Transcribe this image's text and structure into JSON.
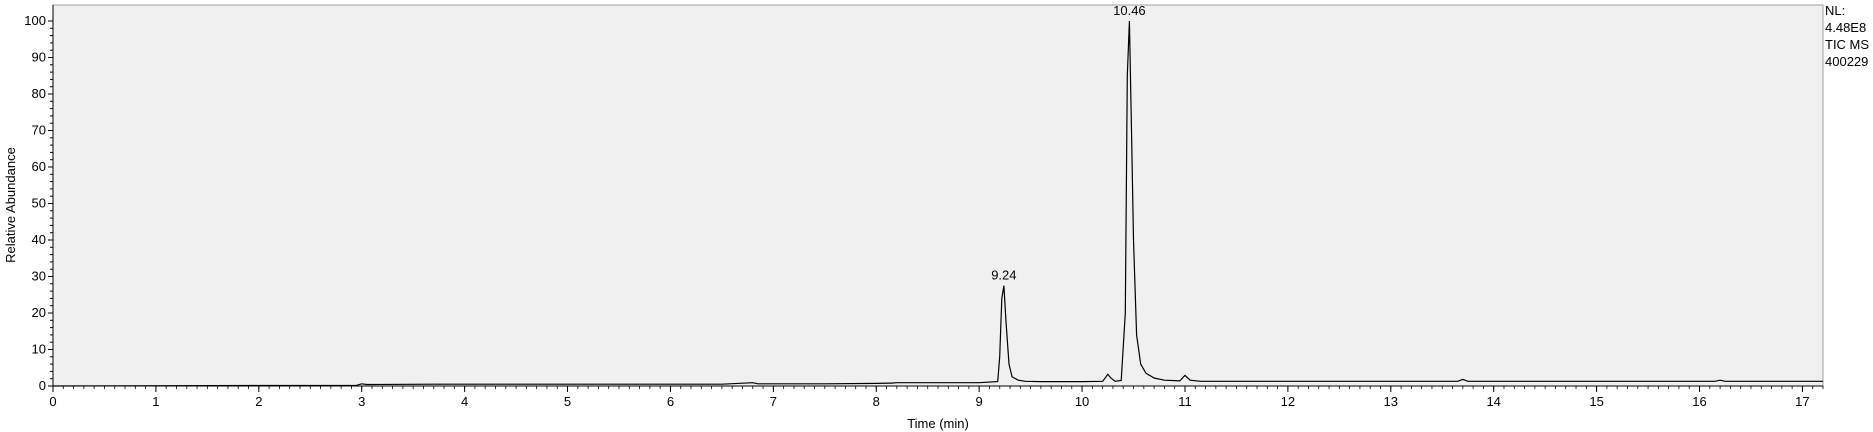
{
  "chart_data": {
    "type": "line",
    "xlabel": "Time (min)",
    "ylabel": "Relative Abundance",
    "xlim": [
      0,
      17.2
    ],
    "ylim": [
      0,
      100
    ],
    "x_ticks": [
      0,
      1,
      2,
      3,
      4,
      5,
      6,
      7,
      8,
      9,
      10,
      11,
      12,
      13,
      14,
      15,
      16,
      17
    ],
    "y_ticks": [
      0,
      10,
      20,
      30,
      40,
      50,
      60,
      70,
      80,
      90,
      100
    ],
    "info_lines": [
      "NL:",
      "4.48E8",
      "TIC  MS",
      "400229"
    ],
    "peak_labels": [
      {
        "x": 9.24,
        "y": 27.5,
        "text": "9.24"
      },
      {
        "x": 10.46,
        "y": 100,
        "text": "10.46"
      }
    ],
    "series": [
      {
        "x": [
          0,
          2.95,
          3.0,
          3.05,
          3.7,
          4.5,
          5.5,
          6.5,
          6.8,
          6.85,
          6.9,
          7.5,
          8.0,
          8.15,
          8.2,
          8.5,
          9.0,
          9.18,
          9.2,
          9.22,
          9.24,
          9.26,
          9.29,
          9.32,
          9.38,
          9.45,
          9.6,
          10.0,
          10.2,
          10.25,
          10.28,
          10.32,
          10.38,
          10.42,
          10.44,
          10.46,
          10.48,
          10.5,
          10.53,
          10.57,
          10.62,
          10.7,
          10.8,
          10.95,
          11.0,
          11.05,
          11.15,
          11.5,
          12.0,
          13.0,
          13.65,
          13.7,
          13.75,
          14.0,
          15.0,
          16.15,
          16.2,
          16.25,
          17.2
        ],
        "y": [
          0,
          0.2,
          0.6,
          0.4,
          0.5,
          0.5,
          0.5,
          0.5,
          0.9,
          0.6,
          0.6,
          0.6,
          0.7,
          0.8,
          0.9,
          0.9,
          0.9,
          1.2,
          8,
          24,
          27.5,
          18,
          6,
          2.5,
          1.6,
          1.3,
          1.2,
          1.2,
          1.3,
          3.2,
          2.2,
          1.3,
          1.5,
          20,
          85,
          100,
          70,
          40,
          14,
          6,
          3.5,
          2.2,
          1.6,
          1.4,
          2.9,
          1.6,
          1.3,
          1.3,
          1.3,
          1.3,
          1.3,
          1.8,
          1.3,
          1.3,
          1.3,
          1.3,
          1.6,
          1.3,
          1.3
        ]
      }
    ]
  }
}
